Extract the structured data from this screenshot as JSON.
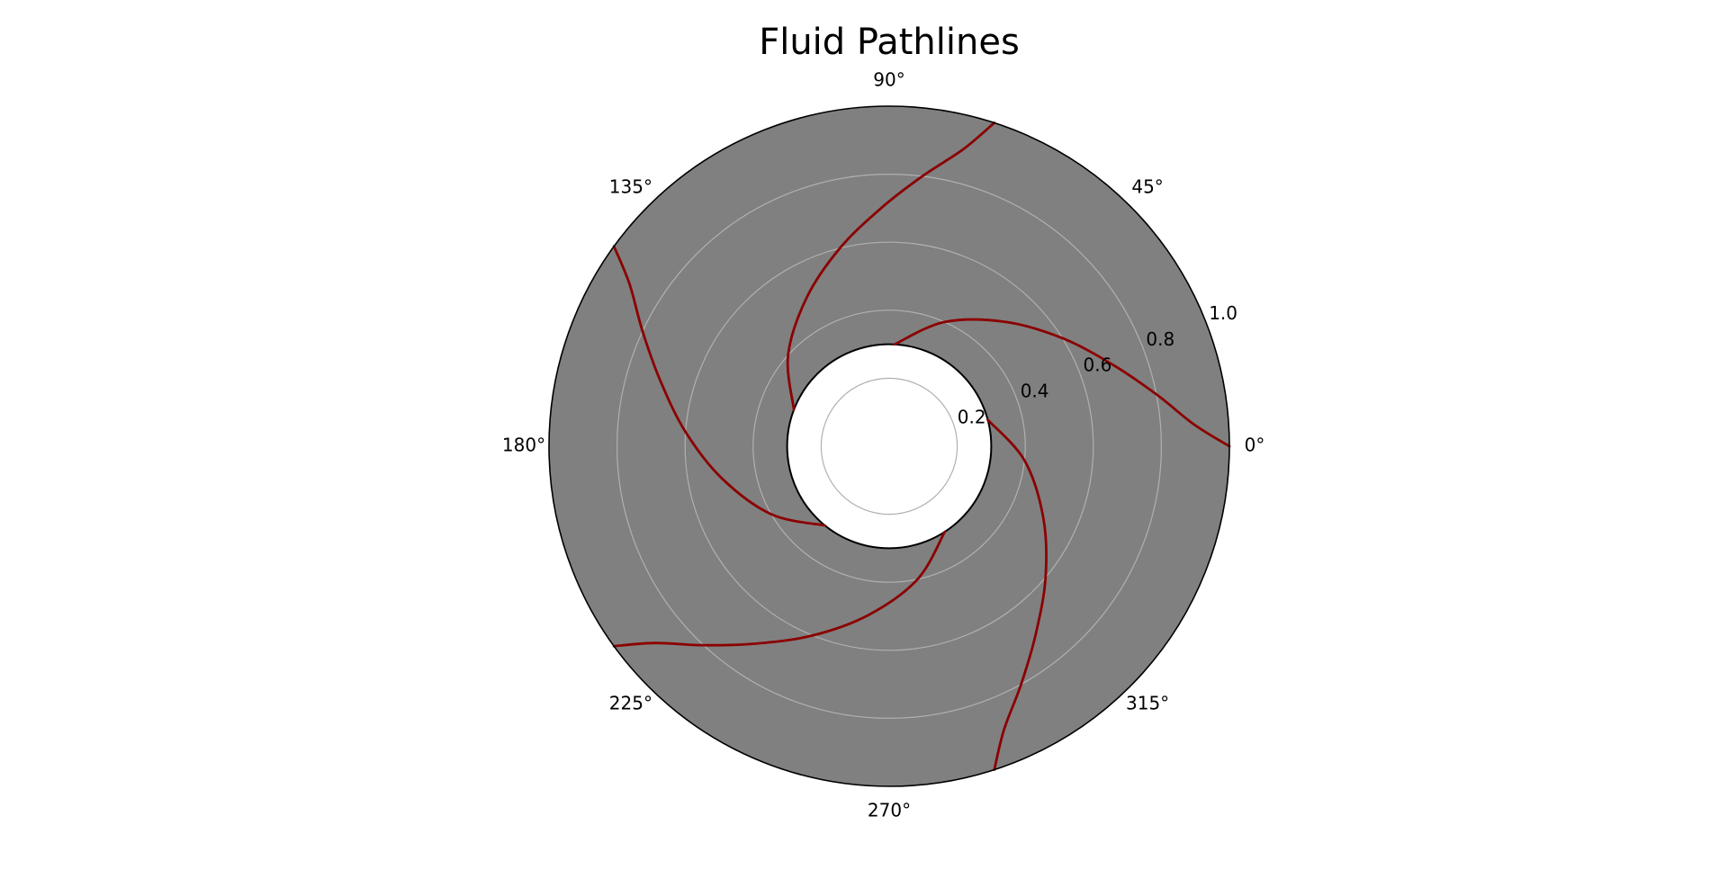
{
  "chart_data": {
    "type": "line",
    "projection": "polar",
    "title": "Fluid Pathlines",
    "theta_ticks": [
      "0°",
      "45°",
      "90°",
      "135°",
      "180°",
      "225°",
      "270°",
      "315°"
    ],
    "theta_tick_degrees": [
      0,
      45,
      90,
      135,
      180,
      225,
      270,
      315
    ],
    "r_ticks": [
      "0.2",
      "0.4",
      "0.6",
      "0.8",
      "1.0"
    ],
    "r_tick_values": [
      0.2,
      0.4,
      0.6,
      0.8,
      1.0
    ],
    "r_label_angle_deg": 22.5,
    "rlim": [
      0,
      1.0
    ],
    "grid": true,
    "colors": {
      "background": "#808080",
      "grid": "#b0b0b0",
      "line": "#8b0000",
      "obstacle_fill": "#ffffff",
      "outline": "#000000"
    },
    "obstacle": {
      "shape": "circle",
      "radius": 0.3
    },
    "series": [
      {
        "r": [
          0.3,
          0.4,
          0.5,
          0.6,
          0.7,
          0.8,
          0.9,
          1.0
        ],
        "theta_deg": [
          87,
          66,
          47,
          32,
          20,
          11,
          4,
          0
        ]
      },
      {
        "r": [
          0.3,
          0.4,
          0.5,
          0.6,
          0.7,
          0.8,
          0.9,
          1.0
        ],
        "theta_deg": [
          159,
          138,
          119,
          104,
          92,
          83,
          76,
          72
        ]
      },
      {
        "r": [
          0.3,
          0.4,
          0.5,
          0.6,
          0.7,
          0.8,
          0.9,
          1.0
        ],
        "theta_deg": [
          231,
          210,
          191,
          176,
          164,
          155,
          148,
          144
        ]
      },
      {
        "r": [
          0.3,
          0.4,
          0.5,
          0.6,
          0.7,
          0.8,
          0.9,
          1.0
        ],
        "theta_deg": [
          303,
          282,
          263,
          248,
          236,
          227,
          220,
          216
        ]
      },
      {
        "r": [
          0.3,
          0.4,
          0.5,
          0.6,
          0.7,
          0.8,
          0.9,
          1.0
        ],
        "theta_deg": [
          15,
          354,
          335,
          320,
          308,
          299,
          292,
          288
        ]
      }
    ]
  }
}
